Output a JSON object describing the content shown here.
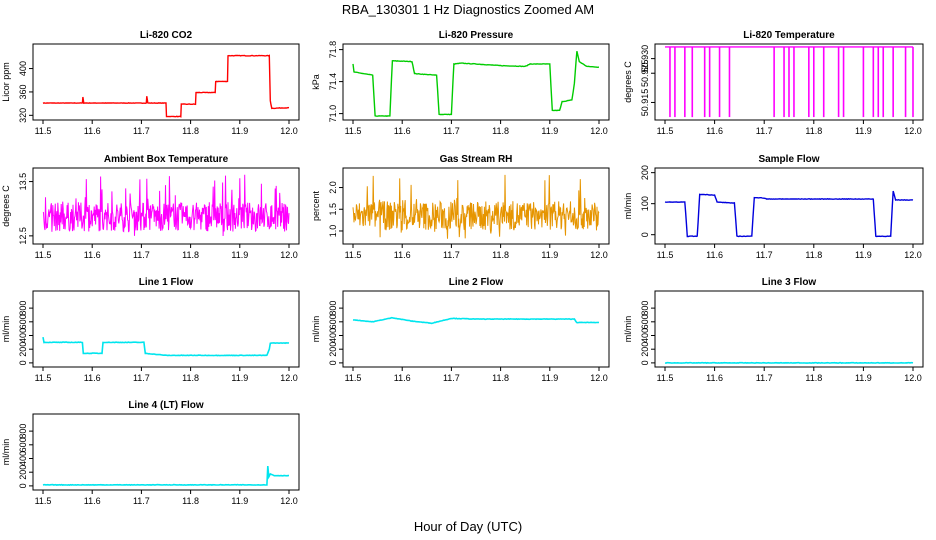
{
  "figure": {
    "title": "RBA_130301  1 Hz Diagnostics Zoomed AM",
    "xlabel": "Hour of Day (UTC)"
  },
  "chart_data": [
    {
      "type": "line",
      "title": "Li-820 CO2",
      "ylabel": "Licor ppm",
      "color": "#ff0000",
      "xlim": [
        11.5,
        12.0
      ],
      "ylim": [
        312,
        442
      ],
      "xticks": [
        "11.5",
        "11.6",
        "11.7",
        "11.8",
        "11.9",
        "12.0"
      ],
      "yticks": [
        320,
        360,
        400
      ],
      "series": [
        {
          "x": [
            11.5,
            11.58,
            11.581,
            11.583,
            11.71,
            11.711,
            11.713,
            11.75,
            11.751,
            11.76,
            11.77,
            11.78,
            11.781,
            11.81,
            11.811,
            11.84,
            11.85,
            11.851,
            11.87,
            11.875,
            11.876,
            11.955,
            11.96,
            11.962,
            11.965,
            12.0
          ],
          "y": [
            341,
            341,
            351,
            341,
            341,
            353,
            341,
            341,
            318,
            318,
            318,
            318,
            339,
            339,
            359,
            359,
            359,
            378,
            378,
            378,
            422,
            422,
            422,
            345,
            332,
            333
          ]
        }
      ]
    },
    {
      "type": "line",
      "title": "Li-820 Pressure",
      "ylabel": "kPa",
      "color": "#00cc00",
      "xlim": [
        11.5,
        12.0
      ],
      "ylim": [
        70.92,
        71.87
      ],
      "xticks": [
        "11.5",
        "11.6",
        "11.7",
        "11.8",
        "11.9",
        "12.0"
      ],
      "yticks": [
        "71.0",
        "71.4",
        "71.8"
      ],
      "series": [
        {
          "x": [
            11.5,
            11.502,
            11.54,
            11.545,
            11.575,
            11.58,
            11.62,
            11.625,
            11.67,
            11.675,
            11.7,
            11.705,
            11.72,
            11.75,
            11.8,
            11.85,
            11.86,
            11.9,
            11.905,
            11.92,
            11.925,
            11.945,
            11.95,
            11.955,
            11.96,
            11.975,
            12.0
          ],
          "y": [
            71.62,
            71.52,
            71.48,
            70.97,
            70.97,
            71.66,
            71.65,
            71.5,
            71.48,
            70.99,
            70.99,
            71.62,
            71.63,
            71.62,
            71.6,
            71.59,
            71.62,
            71.62,
            71.04,
            71.04,
            71.15,
            71.17,
            71.38,
            71.78,
            71.65,
            71.59,
            71.58
          ]
        }
      ]
    },
    {
      "type": "line",
      "title": "Li-820 Temperature",
      "ylabel": "degrees C",
      "color": "#ff00ff",
      "xlim": [
        11.5,
        12.0
      ],
      "ylim": [
        50.909,
        50.935
      ],
      "xticks": [
        "11.5",
        "11.6",
        "11.7",
        "11.8",
        "11.9",
        "12.0"
      ],
      "yticks": [
        "50.915",
        "50.925",
        "50.930"
      ],
      "series": [
        {
          "baseline": 50.934,
          "dip": 50.91,
          "dip_x": [
            11.51,
            11.52,
            11.54,
            11.555,
            11.58,
            11.59,
            11.61,
            11.63,
            11.72,
            11.74,
            11.75,
            11.76,
            11.79,
            11.8,
            11.82,
            11.85,
            11.86,
            11.9,
            11.92,
            11.93,
            11.94,
            11.96,
            11.985,
            12.0
          ]
        }
      ]
    },
    {
      "type": "line",
      "title": "Ambient Box Temperature",
      "ylabel": "degrees C",
      "color": "#ff00ff",
      "xlim": [
        11.5,
        12.0
      ],
      "ylim": [
        12.35,
        13.75
      ],
      "xticks": [
        "11.5",
        "11.6",
        "11.7",
        "11.8",
        "11.9",
        "12.0"
      ],
      "yticks": [
        "12.5",
        "13.5"
      ],
      "series": [
        {
          "center": 12.85,
          "low": 12.45,
          "high": 13.65
        }
      ]
    },
    {
      "type": "line",
      "title": "Gas Stream RH",
      "ylabel": "percent",
      "color": "#e69500",
      "xlim": [
        11.5,
        12.0
      ],
      "ylim": [
        0.7,
        2.45
      ],
      "xticks": [
        "11.5",
        "11.6",
        "11.7",
        "11.8",
        "11.9",
        "12.0"
      ],
      "yticks": [
        "1.0",
        "1.5",
        "2.0"
      ],
      "series": [
        {
          "center": 1.35,
          "low": 0.8,
          "high": 2.3
        }
      ]
    },
    {
      "type": "line",
      "title": "Sample Flow",
      "ylabel": "ml/min",
      "color": "#0000dd",
      "xlim": [
        11.5,
        12.0
      ],
      "ylim": [
        -30,
        215
      ],
      "xticks": [
        "11.5",
        "11.6",
        "11.7",
        "11.8",
        "11.9",
        "12.0"
      ],
      "yticks": [
        0,
        100,
        200
      ],
      "series": [
        {
          "x": [
            11.5,
            11.54,
            11.545,
            11.565,
            11.57,
            11.6,
            11.605,
            11.64,
            11.645,
            11.675,
            11.68,
            11.7,
            11.705,
            11.92,
            11.925,
            11.955,
            11.96,
            11.965,
            12.0
          ],
          "y": [
            105,
            105,
            -5,
            -5,
            130,
            128,
            105,
            102,
            -5,
            -5,
            120,
            118,
            115,
            115,
            -5,
            -5,
            140,
            112,
            112
          ]
        }
      ]
    },
    {
      "type": "line",
      "title": "Line 1 Flow",
      "ylabel": "ml/min",
      "color": "#00e5ee",
      "xlim": [
        11.5,
        12.0
      ],
      "ylim": [
        -60,
        1050
      ],
      "xticks": [
        "11.5",
        "11.6",
        "11.7",
        "11.8",
        "11.9",
        "12.0"
      ],
      "yticks": [
        0,
        200,
        400,
        600,
        800
      ],
      "series": [
        {
          "x": [
            11.5,
            11.502,
            11.58,
            11.582,
            11.62,
            11.622,
            11.705,
            11.708,
            11.75,
            11.95,
            11.955,
            11.96,
            11.962,
            12.0
          ],
          "y": [
            380,
            300,
            300,
            140,
            140,
            300,
            300,
            140,
            110,
            110,
            110,
            200,
            290,
            290
          ]
        }
      ]
    },
    {
      "type": "line",
      "title": "Line 2 Flow",
      "ylabel": "ml/min",
      "color": "#00e5ee",
      "xlim": [
        11.5,
        12.0
      ],
      "ylim": [
        -60,
        1050
      ],
      "xticks": [
        "11.5",
        "11.6",
        "11.7",
        "11.8",
        "11.9",
        "12.0"
      ],
      "yticks": [
        0,
        200,
        400,
        600,
        800
      ],
      "series": [
        {
          "x": [
            11.5,
            11.54,
            11.58,
            11.62,
            11.66,
            11.7,
            11.75,
            11.95,
            11.955,
            12.0
          ],
          "y": [
            630,
            600,
            660,
            610,
            580,
            650,
            640,
            640,
            590,
            590
          ]
        }
      ]
    },
    {
      "type": "line",
      "title": "Line 3 Flow",
      "ylabel": "ml/min",
      "color": "#00e5ee",
      "xlim": [
        11.5,
        12.0
      ],
      "ylim": [
        -60,
        1050
      ],
      "xticks": [
        "11.5",
        "11.6",
        "11.7",
        "11.8",
        "11.9",
        "12.0"
      ],
      "yticks": [
        0,
        200,
        400,
        600,
        800
      ],
      "series": [
        {
          "x": [
            11.5,
            12.0
          ],
          "y": [
            0,
            0
          ]
        }
      ]
    },
    {
      "type": "line",
      "title": "Line 4 (LT) Flow",
      "ylabel": "ml/min",
      "color": "#00e5ee",
      "xlim": [
        11.5,
        12.0
      ],
      "ylim": [
        -60,
        1050
      ],
      "xticks": [
        "11.5",
        "11.6",
        "11.7",
        "11.8",
        "11.9",
        "12.0"
      ],
      "yticks": [
        0,
        200,
        400,
        600,
        800
      ],
      "series": [
        {
          "x": [
            11.5,
            11.955,
            11.957,
            11.959,
            11.962,
            11.97,
            12.0
          ],
          "y": [
            15,
            15,
            290,
            130,
            175,
            150,
            150
          ]
        }
      ]
    }
  ]
}
